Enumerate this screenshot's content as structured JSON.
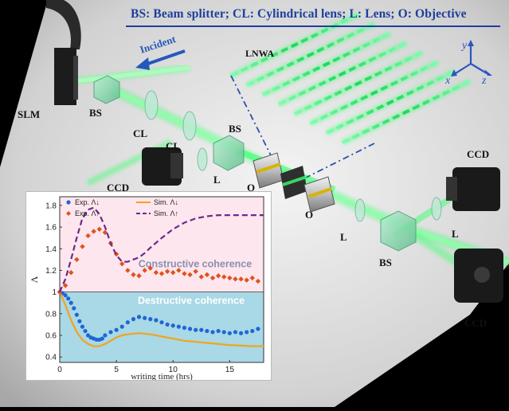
{
  "legend_text": "BS: Beam splitter; CL: Cylindrical lens; L: Lens; O: Objective",
  "labels": {
    "incident": "Incident",
    "lnwa": "LNWA",
    "slm": "SLM",
    "bs": "BS",
    "cl": "CL",
    "l": "L",
    "o": "O",
    "ccd": "CCD",
    "axis_x": "x",
    "axis_y": "y",
    "axis_z": "z"
  },
  "colors": {
    "beam": "#39ff6a",
    "legend_text": "#1d3f9c",
    "constructive_bg": "#fde6ee",
    "destructive_bg": "#a9d8e6",
    "exp_down": "#1f66d6",
    "sim_down": "#f0a41c",
    "exp_up": "#e0521c",
    "sim_up": "#6b2a8c"
  },
  "chart_data": {
    "type": "line",
    "xlabel": "writing time (hrs)",
    "ylabel": "Λ",
    "xlim": [
      0,
      18
    ],
    "ylim": [
      0.35,
      1.88
    ],
    "xticks": [
      0,
      5,
      10,
      15
    ],
    "yticks": [
      0.4,
      0.6,
      0.8,
      1.0,
      1.2,
      1.4,
      1.6,
      1.8
    ],
    "ytick_labels": [
      "0.4",
      "0.6",
      "0.8",
      "1",
      "1.2",
      "1.4",
      "1.6",
      "1.8"
    ],
    "regions": [
      {
        "label": "Constructive coherence",
        "y_from": 1.0,
        "y_to": 1.88
      },
      {
        "label": "Destructive coherence",
        "y_from": 0.35,
        "y_to": 1.0
      }
    ],
    "legend": [
      "Exp. Λ↓",
      "Sim. Λ↓",
      "Exp. Λ↑",
      "Sim. Λ↑"
    ],
    "series": [
      {
        "name": "Exp. Λ↓",
        "kind": "scatter",
        "x": [
          0,
          0.25,
          0.5,
          0.75,
          1.0,
          1.25,
          1.5,
          1.75,
          2.0,
          2.25,
          2.5,
          2.75,
          3.0,
          3.25,
          3.5,
          3.75,
          4.0,
          4.5,
          5.0,
          5.5,
          6.0,
          6.5,
          7.0,
          7.5,
          8.0,
          8.5,
          9.0,
          9.5,
          10.0,
          10.5,
          11.0,
          11.5,
          12.0,
          12.5,
          13.0,
          13.5,
          14.0,
          14.5,
          15.0,
          15.5,
          16.0,
          16.5,
          17.0,
          17.5
        ],
        "y": [
          1.0,
          0.99,
          0.97,
          0.94,
          0.9,
          0.85,
          0.79,
          0.73,
          0.68,
          0.64,
          0.6,
          0.58,
          0.57,
          0.56,
          0.56,
          0.57,
          0.6,
          0.63,
          0.65,
          0.68,
          0.72,
          0.75,
          0.77,
          0.76,
          0.75,
          0.74,
          0.72,
          0.7,
          0.69,
          0.68,
          0.67,
          0.66,
          0.65,
          0.65,
          0.64,
          0.63,
          0.64,
          0.63,
          0.62,
          0.63,
          0.62,
          0.63,
          0.64,
          0.66
        ]
      },
      {
        "name": "Sim. Λ↓",
        "kind": "line",
        "x": [
          0,
          0.5,
          1,
          1.5,
          2,
          2.5,
          3,
          3.5,
          4,
          4.5,
          5,
          5.5,
          6,
          7,
          8,
          9,
          10,
          11,
          12,
          13,
          14,
          15,
          16,
          17,
          18
        ],
        "y": [
          1.0,
          0.88,
          0.74,
          0.63,
          0.56,
          0.52,
          0.5,
          0.5,
          0.52,
          0.55,
          0.58,
          0.6,
          0.61,
          0.62,
          0.61,
          0.59,
          0.57,
          0.55,
          0.54,
          0.53,
          0.52,
          0.51,
          0.505,
          0.5,
          0.5
        ]
      },
      {
        "name": "Exp. Λ↑",
        "kind": "scatter",
        "x": [
          0,
          0.5,
          1.0,
          1.5,
          2.0,
          2.5,
          3.0,
          3.5,
          4.0,
          4.5,
          5.0,
          5.5,
          6.0,
          6.5,
          7.0,
          7.5,
          8.0,
          8.5,
          9.0,
          9.5,
          10.0,
          10.5,
          11.0,
          11.5,
          12.0,
          12.5,
          13.0,
          13.5,
          14.0,
          14.5,
          15.0,
          15.5,
          16.0,
          16.5,
          17.0,
          17.5
        ],
        "y": [
          1.0,
          1.06,
          1.18,
          1.3,
          1.42,
          1.52,
          1.56,
          1.58,
          1.55,
          1.45,
          1.35,
          1.26,
          1.2,
          1.16,
          1.15,
          1.2,
          1.22,
          1.18,
          1.17,
          1.19,
          1.18,
          1.2,
          1.17,
          1.16,
          1.19,
          1.14,
          1.16,
          1.13,
          1.15,
          1.14,
          1.13,
          1.12,
          1.12,
          1.11,
          1.13,
          1.1
        ]
      },
      {
        "name": "Sim. Λ↑",
        "kind": "line",
        "x": [
          0,
          0.5,
          1,
          1.5,
          2,
          2.5,
          3,
          3.5,
          4,
          4.5,
          5,
          5.5,
          6,
          6.5,
          7,
          7.5,
          8,
          9,
          10,
          11,
          12,
          13,
          14,
          15,
          16,
          17,
          18
        ],
        "y": [
          1.0,
          1.12,
          1.3,
          1.5,
          1.68,
          1.76,
          1.78,
          1.72,
          1.6,
          1.45,
          1.34,
          1.28,
          1.28,
          1.3,
          1.32,
          1.36,
          1.41,
          1.5,
          1.58,
          1.64,
          1.68,
          1.7,
          1.71,
          1.71,
          1.71,
          1.71,
          1.71
        ]
      }
    ]
  }
}
